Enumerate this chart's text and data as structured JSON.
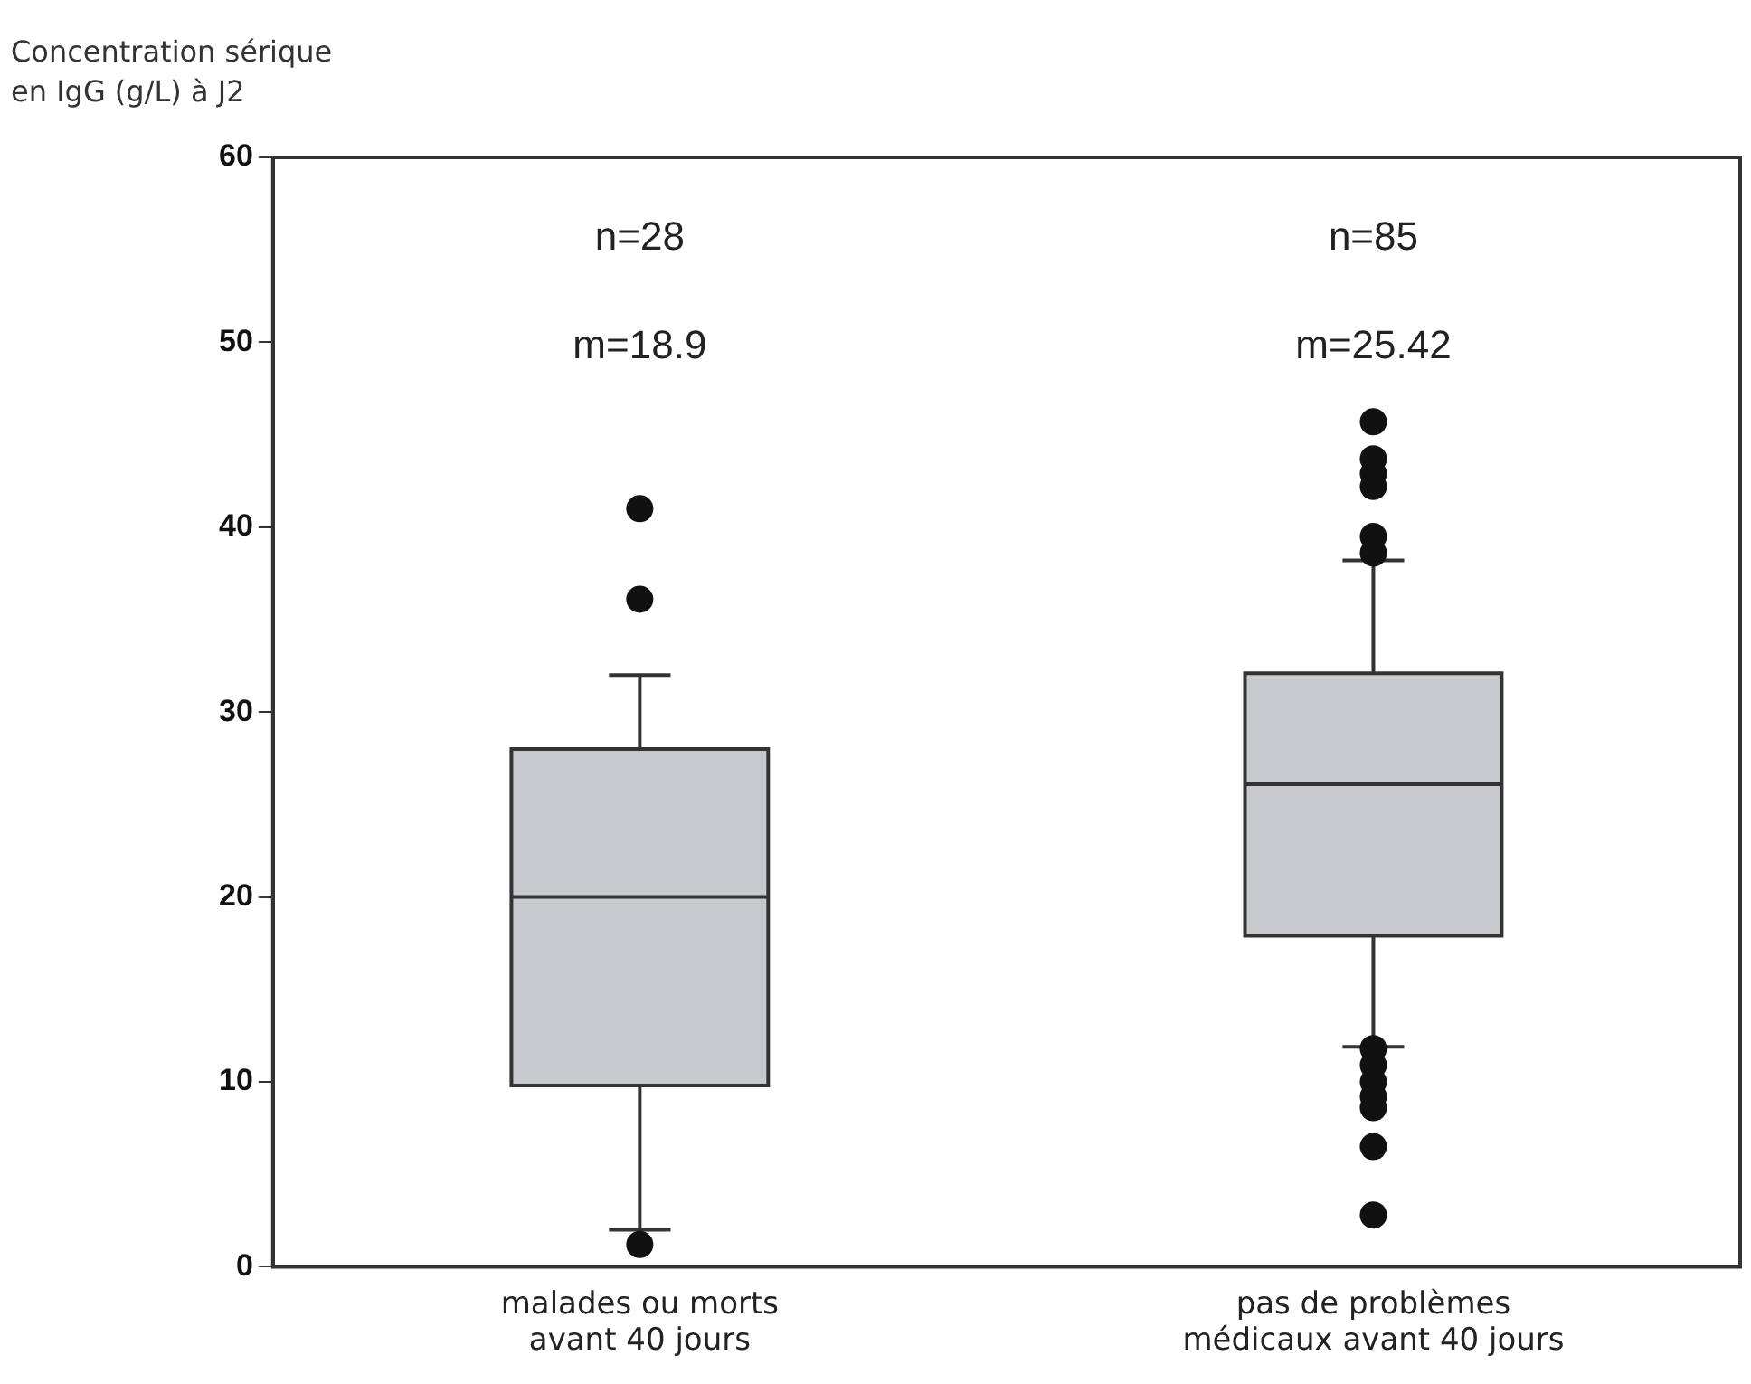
{
  "chart_data": {
    "type": "box",
    "ylabel": "Concentration sérique en IgG (g/L) à J2",
    "categories": [
      "malades ou morts avant 40 jours",
      "pas de problèmes médicaux avant 40 jours"
    ],
    "color": "#c8c9cc",
    "boxes": [
      {
        "low": 2,
        "q1": 9.8,
        "median": 20,
        "q3": 28,
        "high": 32,
        "outliers": [
          41,
          36.1,
          1.2
        ]
      },
      {
        "low": 11.9,
        "q1": 17.9,
        "median": 26.1,
        "q3": 32.1,
        "high": 38.2,
        "outliers": [
          45.7,
          43.7,
          42.9,
          42.2,
          39.5,
          38.6,
          11.8,
          10.9,
          10,
          9.2,
          8.6,
          6.5,
          2.8
        ]
      }
    ],
    "ylim": [
      0,
      60
    ],
    "yticks": [
      0,
      10,
      20,
      30,
      40,
      50,
      60
    ],
    "grid": false,
    "marker": "circle",
    "annotations": [
      "n=28",
      "n=85",
      "m=18.9",
      "m=25.42"
    ]
  }
}
